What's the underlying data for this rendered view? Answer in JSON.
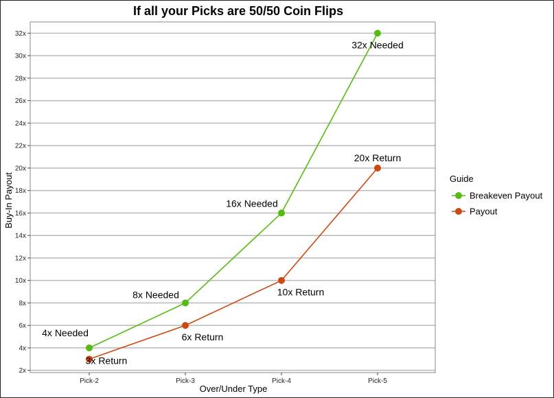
{
  "chart_data": {
    "type": "line",
    "title": "If all your Picks are 50/50 Coin Flips",
    "xlabel": "Over/Under Type",
    "ylabel": "Buy-In  Payout",
    "categories": [
      "Pick-2",
      "Pick-3",
      "Pick-4",
      "Pick-5"
    ],
    "ylim": [
      1.8,
      33
    ],
    "yticks": [
      2,
      4,
      6,
      8,
      10,
      12,
      14,
      16,
      18,
      20,
      22,
      24,
      26,
      28,
      30,
      32
    ],
    "ytick_labels": [
      "2x",
      "4x",
      "6x",
      "8x",
      "10x",
      "12x",
      "14x",
      "16x",
      "18x",
      "20x",
      "22x",
      "24x",
      "26x",
      "28x",
      "30x",
      "32x"
    ],
    "grid": true,
    "legend": {
      "title": "Guide",
      "placement": "right"
    },
    "series": [
      {
        "name": "Breakeven Payout",
        "color": "#55bb11",
        "values": [
          4,
          8,
          16,
          32
        ],
        "labels": [
          "4x Needed",
          "8x Needed",
          "16x Needed",
          "32x Needed"
        ]
      },
      {
        "name": "Payout",
        "color": "#cc4a12",
        "values": [
          3,
          6,
          10,
          20
        ],
        "labels": [
          "3x Return",
          "6x Return",
          "10x Return",
          "20x Return"
        ]
      }
    ]
  }
}
